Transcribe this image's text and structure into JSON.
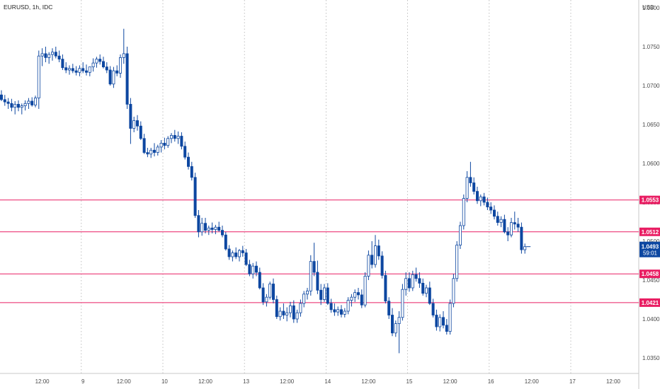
{
  "chart_data": {
    "type": "candlestick",
    "title": "EURUSD, 1h, IDC",
    "currency": "USD",
    "ylim": [
      1.033,
      1.081
    ],
    "y_ticks": [
      "1.0350",
      "1.0400",
      "1.0450",
      "1.0500",
      "1.0550",
      "1.0600",
      "1.0650",
      "1.0700",
      "1.0750",
      "1.0800"
    ],
    "x_ticks": [
      {
        "label": "12:00",
        "bar": 12
      },
      {
        "label": "9",
        "bar": 24
      },
      {
        "label": "12:00",
        "bar": 36
      },
      {
        "label": "10",
        "bar": 48
      },
      {
        "label": "12:00",
        "bar": 60
      },
      {
        "label": "13",
        "bar": 72
      },
      {
        "label": "12:00",
        "bar": 84
      },
      {
        "label": "14",
        "bar": 96
      },
      {
        "label": "12:00",
        "bar": 108
      },
      {
        "label": "15",
        "bar": 120
      },
      {
        "label": "12:00",
        "bar": 132
      },
      {
        "label": "16",
        "bar": 144
      },
      {
        "label": "12:00",
        "bar": 156
      },
      {
        "label": "17",
        "bar": 168
      },
      {
        "label": "12:00",
        "bar": 180
      }
    ],
    "day_separators": [
      23,
      47,
      71,
      95,
      119,
      143,
      167
    ],
    "horizontal_lines": [
      {
        "value": 1.0553,
        "label": "1.0553"
      },
      {
        "value": 1.0512,
        "label": "1.0512"
      },
      {
        "value": 1.0458,
        "label": "1.0458"
      },
      {
        "value": 1.0421,
        "label": "1.0421"
      }
    ],
    "last_price": {
      "value": 1.0493,
      "label": "1.0493",
      "countdown": "59:01"
    },
    "colors": {
      "up": "#ffffff",
      "down": "#0d47a1",
      "border": "#0d47a1",
      "level_line": "#e91e63",
      "grid": "#b0b0b0"
    },
    "ohlc": [
      [
        1.0688,
        1.0694,
        1.068,
        1.0682
      ],
      [
        1.0682,
        1.0688,
        1.0674,
        1.0679
      ],
      [
        1.0679,
        1.0684,
        1.067,
        1.0677
      ],
      [
        1.0677,
        1.0683,
        1.0667,
        1.0672
      ],
      [
        1.0672,
        1.068,
        1.0663,
        1.0676
      ],
      [
        1.0676,
        1.0681,
        1.0667,
        1.0672
      ],
      [
        1.0672,
        1.0677,
        1.0663,
        1.0674
      ],
      [
        1.0674,
        1.0681,
        1.0668,
        1.0677
      ],
      [
        1.0677,
        1.0684,
        1.067,
        1.068
      ],
      [
        1.068,
        1.0685,
        1.0673,
        1.0675
      ],
      [
        1.0675,
        1.0687,
        1.0672,
        1.0684
      ],
      [
        1.0684,
        1.0745,
        1.067,
        1.0738
      ],
      [
        1.0738,
        1.0748,
        1.0725,
        1.0741
      ],
      [
        1.0741,
        1.075,
        1.073,
        1.0736
      ],
      [
        1.0736,
        1.0743,
        1.0728,
        1.074
      ],
      [
        1.074,
        1.0748,
        1.0732,
        1.0743
      ],
      [
        1.0743,
        1.075,
        1.0735,
        1.0738
      ],
      [
        1.0738,
        1.0745,
        1.073,
        1.0734
      ],
      [
        1.0734,
        1.074,
        1.072,
        1.0723
      ],
      [
        1.0723,
        1.073,
        1.0716,
        1.072
      ],
      [
        1.072,
        1.0726,
        1.0714,
        1.0722
      ],
      [
        1.0722,
        1.0728,
        1.0716,
        1.0719
      ],
      [
        1.0719,
        1.0725,
        1.0713,
        1.0717
      ],
      [
        1.0717,
        1.0726,
        1.0712,
        1.0722
      ],
      [
        1.0722,
        1.073,
        1.0716,
        1.0719
      ],
      [
        1.0719,
        1.0727,
        1.0713,
        1.0717
      ],
      [
        1.0717,
        1.0724,
        1.0712,
        1.0724
      ],
      [
        1.0724,
        1.0735,
        1.0718,
        1.0729
      ],
      [
        1.0729,
        1.0737,
        1.0723,
        1.0734
      ],
      [
        1.0734,
        1.074,
        1.0727,
        1.0731
      ],
      [
        1.0731,
        1.0737,
        1.0722,
        1.0724
      ],
      [
        1.0724,
        1.073,
        1.0716,
        1.072
      ],
      [
        1.072,
        1.0725,
        1.07,
        1.0702
      ],
      [
        1.0702,
        1.0724,
        1.0697,
        1.0719
      ],
      [
        1.0719,
        1.0726,
        1.0712,
        1.0716
      ],
      [
        1.0716,
        1.074,
        1.071,
        1.0736
      ],
      [
        1.0736,
        1.0773,
        1.0728,
        1.0741
      ],
      [
        1.0741,
        1.075,
        1.067,
        1.0676
      ],
      [
        1.0676,
        1.0684,
        1.0625,
        1.0645
      ],
      [
        1.0645,
        1.066,
        1.064,
        1.0655
      ],
      [
        1.0655,
        1.0662,
        1.0642,
        1.0648
      ],
      [
        1.0648,
        1.0654,
        1.063,
        1.0632
      ],
      [
        1.0632,
        1.0638,
        1.0612,
        1.0614
      ],
      [
        1.0614,
        1.062,
        1.0608,
        1.0612
      ],
      [
        1.0612,
        1.062,
        1.0607,
        1.0617
      ],
      [
        1.0617,
        1.0626,
        1.0609,
        1.0614
      ],
      [
        1.0614,
        1.0624,
        1.061,
        1.0621
      ],
      [
        1.0621,
        1.063,
        1.0614,
        1.0626
      ],
      [
        1.0626,
        1.0633,
        1.0618,
        1.0623
      ],
      [
        1.0623,
        1.0635,
        1.062,
        1.0632
      ],
      [
        1.0632,
        1.0639,
        1.0626,
        1.0636
      ],
      [
        1.0636,
        1.0643,
        1.0628,
        1.0632
      ],
      [
        1.0632,
        1.0641,
        1.0625,
        1.0635
      ],
      [
        1.0635,
        1.064,
        1.0618,
        1.0622
      ],
      [
        1.0622,
        1.0628,
        1.0605,
        1.0608
      ],
      [
        1.0608,
        1.0614,
        1.0592,
        1.0596
      ],
      [
        1.0596,
        1.0602,
        1.0578,
        1.0582
      ],
      [
        1.0582,
        1.0588,
        1.053,
        1.0533
      ],
      [
        1.0533,
        1.054,
        1.0505,
        1.0512
      ],
      [
        1.0512,
        1.053,
        1.0507,
        1.0523
      ],
      [
        1.0523,
        1.053,
        1.051,
        1.0514
      ],
      [
        1.0514,
        1.052,
        1.0508,
        1.0517
      ],
      [
        1.0517,
        1.0524,
        1.051,
        1.0515
      ],
      [
        1.0515,
        1.0521,
        1.0509,
        1.0518
      ],
      [
        1.0518,
        1.0525,
        1.0512,
        1.0514
      ],
      [
        1.0514,
        1.052,
        1.0505,
        1.0508
      ],
      [
        1.0508,
        1.0512,
        1.0488,
        1.049
      ],
      [
        1.049,
        1.0495,
        1.0476,
        1.048
      ],
      [
        1.048,
        1.0488,
        1.0474,
        1.0485
      ],
      [
        1.0485,
        1.0492,
        1.0477,
        1.048
      ],
      [
        1.048,
        1.049,
        1.0474,
        1.0488
      ],
      [
        1.0488,
        1.0494,
        1.048,
        1.0485
      ],
      [
        1.0485,
        1.049,
        1.0468,
        1.047
      ],
      [
        1.047,
        1.0476,
        1.0455,
        1.0458
      ],
      [
        1.0458,
        1.0472,
        1.0452,
        1.0468
      ],
      [
        1.0468,
        1.0474,
        1.0455,
        1.046
      ],
      [
        1.046,
        1.0466,
        1.0438,
        1.044
      ],
      [
        1.044,
        1.0446,
        1.0418,
        1.0422
      ],
      [
        1.0422,
        1.0432,
        1.0416,
        1.0428
      ],
      [
        1.0428,
        1.0448,
        1.0425,
        1.0445
      ],
      [
        1.0445,
        1.0452,
        1.042,
        1.0425
      ],
      [
        1.0425,
        1.043,
        1.04,
        1.0403
      ],
      [
        1.0403,
        1.0415,
        1.0398,
        1.041
      ],
      [
        1.041,
        1.042,
        1.04,
        1.0405
      ],
      [
        1.0405,
        1.0415,
        1.0397,
        1.0408
      ],
      [
        1.0408,
        1.0422,
        1.0402,
        1.0417
      ],
      [
        1.0417,
        1.0424,
        1.0395,
        1.04
      ],
      [
        1.04,
        1.0412,
        1.0395,
        1.0408
      ],
      [
        1.0408,
        1.0425,
        1.0403,
        1.042
      ],
      [
        1.042,
        1.0436,
        1.0415,
        1.0432
      ],
      [
        1.0432,
        1.044,
        1.0425,
        1.0436
      ],
      [
        1.0436,
        1.0482,
        1.043,
        1.0474
      ],
      [
        1.0474,
        1.0498,
        1.0455,
        1.046
      ],
      [
        1.046,
        1.0475,
        1.0432,
        1.0437
      ],
      [
        1.0437,
        1.0445,
        1.0418,
        1.0425
      ],
      [
        1.0425,
        1.0445,
        1.0422,
        1.044
      ],
      [
        1.044,
        1.0446,
        1.0418,
        1.042
      ],
      [
        1.042,
        1.0426,
        1.0408,
        1.0412
      ],
      [
        1.0412,
        1.042,
        1.0404,
        1.0409
      ],
      [
        1.0409,
        1.0416,
        1.0404,
        1.0412
      ],
      [
        1.0412,
        1.0418,
        1.0402,
        1.0406
      ],
      [
        1.0406,
        1.0414,
        1.0402,
        1.041
      ],
      [
        1.041,
        1.0428,
        1.0406,
        1.0424
      ],
      [
        1.0424,
        1.0432,
        1.0416,
        1.0428
      ],
      [
        1.0428,
        1.0438,
        1.0422,
        1.0434
      ],
      [
        1.0434,
        1.044,
        1.0425,
        1.0431
      ],
      [
        1.0431,
        1.0438,
        1.0414,
        1.0418
      ],
      [
        1.0418,
        1.046,
        1.0415,
        1.0455
      ],
      [
        1.0455,
        1.0488,
        1.045,
        1.0482
      ],
      [
        1.0482,
        1.05,
        1.0465,
        1.047
      ],
      [
        1.047,
        1.0508,
        1.0466,
        1.0494
      ],
      [
        1.0494,
        1.0502,
        1.0476,
        1.0481
      ],
      [
        1.0481,
        1.0487,
        1.0452,
        1.0456
      ],
      [
        1.0456,
        1.0462,
        1.042,
        1.0423
      ],
      [
        1.0423,
        1.0428,
        1.04,
        1.0405
      ],
      [
        1.0405,
        1.0414,
        1.0378,
        1.0382
      ],
      [
        1.0382,
        1.0398,
        1.0377,
        1.0394
      ],
      [
        1.0394,
        1.041,
        1.0356,
        1.0402
      ],
      [
        1.0402,
        1.0445,
        1.0398,
        1.0438
      ],
      [
        1.0438,
        1.046,
        1.043,
        1.0452
      ],
      [
        1.0452,
        1.046,
        1.0435,
        1.044
      ],
      [
        1.044,
        1.0462,
        1.0436,
        1.0457
      ],
      [
        1.0457,
        1.0466,
        1.0448,
        1.0452
      ],
      [
        1.0452,
        1.046,
        1.044,
        1.0446
      ],
      [
        1.0446,
        1.0452,
        1.043,
        1.0433
      ],
      [
        1.0433,
        1.0444,
        1.0428,
        1.044
      ],
      [
        1.044,
        1.0448,
        1.0418,
        1.042
      ],
      [
        1.042,
        1.0426,
        1.0402,
        1.0405
      ],
      [
        1.0405,
        1.0412,
        1.0385,
        1.039
      ],
      [
        1.039,
        1.0406,
        1.0384,
        1.0402
      ],
      [
        1.0402,
        1.041,
        1.0388,
        1.0392
      ],
      [
        1.0392,
        1.04,
        1.038,
        1.0384
      ],
      [
        1.0384,
        1.0425,
        1.038,
        1.042
      ],
      [
        1.042,
        1.0458,
        1.0415,
        1.0452
      ],
      [
        1.0452,
        1.05,
        1.0448,
        1.0495
      ],
      [
        1.0495,
        1.0525,
        1.049,
        1.052
      ],
      [
        1.052,
        1.056,
        1.0515,
        1.0555
      ],
      [
        1.0555,
        1.059,
        1.055,
        1.0582
      ],
      [
        1.0582,
        1.0602,
        1.057,
        1.0575
      ],
      [
        1.0575,
        1.0582,
        1.056,
        1.0564
      ],
      [
        1.0564,
        1.057,
        1.0548,
        1.0552
      ],
      [
        1.0552,
        1.056,
        1.0545,
        1.0557
      ],
      [
        1.0557,
        1.0562,
        1.0546,
        1.055
      ],
      [
        1.055,
        1.0556,
        1.054,
        1.0544
      ],
      [
        1.0544,
        1.055,
        1.0535,
        1.054
      ],
      [
        1.054,
        1.0546,
        1.0528,
        1.0532
      ],
      [
        1.0532,
        1.0538,
        1.052,
        1.0524
      ],
      [
        1.0524,
        1.0532,
        1.0518,
        1.0528
      ],
      [
        1.0528,
        1.0534,
        1.051,
        1.0512
      ],
      [
        1.0512,
        1.0518,
        1.05,
        1.0508
      ],
      [
        1.0508,
        1.053,
        1.0505,
        1.0524
      ],
      [
        1.0524,
        1.0538,
        1.0515,
        1.0522
      ],
      [
        1.0522,
        1.053,
        1.0512,
        1.0518
      ],
      [
        1.0518,
        1.0524,
        1.0484,
        1.0489
      ],
      [
        1.0489,
        1.0497,
        1.0484,
        1.0493
      ]
    ]
  }
}
